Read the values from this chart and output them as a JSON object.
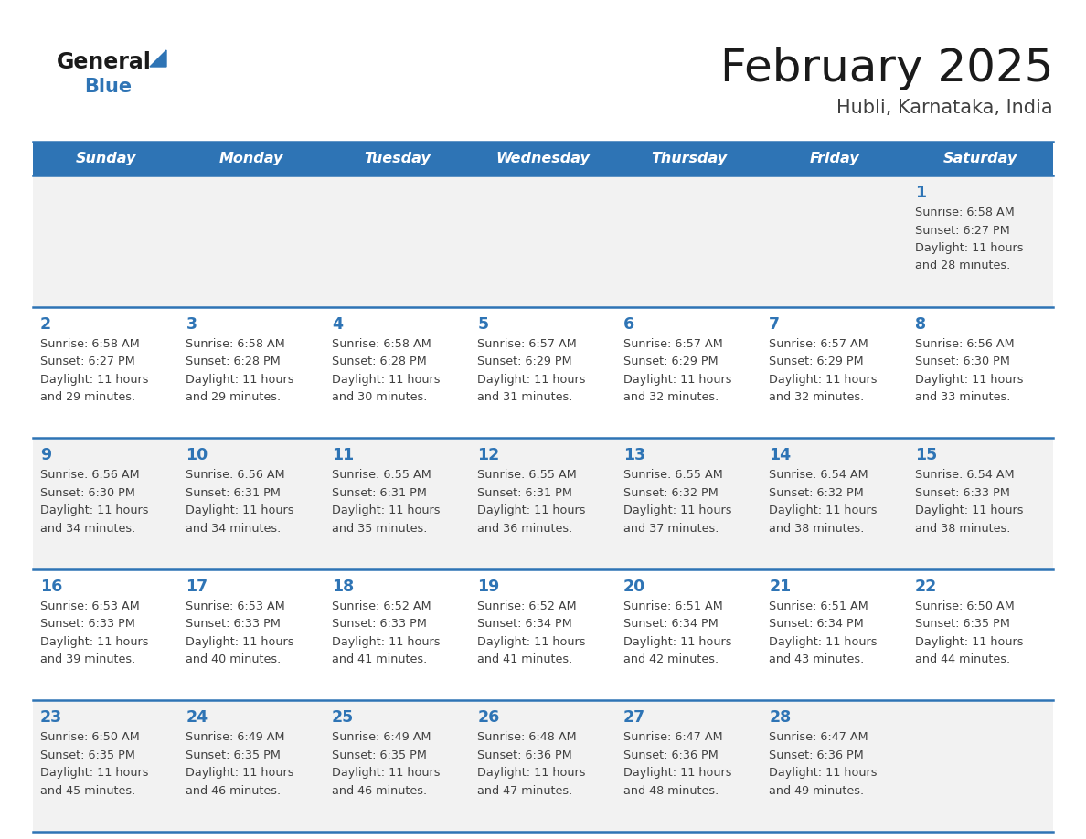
{
  "title": "February 2025",
  "subtitle": "Hubli, Karnataka, India",
  "header_bg_color": "#2e74b5",
  "header_text_color": "#ffffff",
  "day_names": [
    "Sunday",
    "Monday",
    "Tuesday",
    "Wednesday",
    "Thursday",
    "Friday",
    "Saturday"
  ],
  "cell_bg_row0": "#f2f2f2",
  "cell_bg_row1": "#ffffff",
  "cell_bg_row2": "#f2f2f2",
  "cell_bg_row3": "#ffffff",
  "cell_bg_row4": "#f2f2f2",
  "row_line_color": "#2e74b5",
  "date_text_color": "#2e74b5",
  "info_text_color": "#404040",
  "calendar_data": [
    [
      null,
      null,
      null,
      null,
      null,
      null,
      1
    ],
    [
      2,
      3,
      4,
      5,
      6,
      7,
      8
    ],
    [
      9,
      10,
      11,
      12,
      13,
      14,
      15
    ],
    [
      16,
      17,
      18,
      19,
      20,
      21,
      22
    ],
    [
      23,
      24,
      25,
      26,
      27,
      28,
      null
    ]
  ],
  "sunrise": {
    "1": "6:58 AM",
    "2": "6:58 AM",
    "3": "6:58 AM",
    "4": "6:58 AM",
    "5": "6:57 AM",
    "6": "6:57 AM",
    "7": "6:57 AM",
    "8": "6:56 AM",
    "9": "6:56 AM",
    "10": "6:56 AM",
    "11": "6:55 AM",
    "12": "6:55 AM",
    "13": "6:55 AM",
    "14": "6:54 AM",
    "15": "6:54 AM",
    "16": "6:53 AM",
    "17": "6:53 AM",
    "18": "6:52 AM",
    "19": "6:52 AM",
    "20": "6:51 AM",
    "21": "6:51 AM",
    "22": "6:50 AM",
    "23": "6:50 AM",
    "24": "6:49 AM",
    "25": "6:49 AM",
    "26": "6:48 AM",
    "27": "6:47 AM",
    "28": "6:47 AM"
  },
  "sunset": {
    "1": "6:27 PM",
    "2": "6:27 PM",
    "3": "6:28 PM",
    "4": "6:28 PM",
    "5": "6:29 PM",
    "6": "6:29 PM",
    "7": "6:29 PM",
    "8": "6:30 PM",
    "9": "6:30 PM",
    "10": "6:31 PM",
    "11": "6:31 PM",
    "12": "6:31 PM",
    "13": "6:32 PM",
    "14": "6:32 PM",
    "15": "6:33 PM",
    "16": "6:33 PM",
    "17": "6:33 PM",
    "18": "6:33 PM",
    "19": "6:34 PM",
    "20": "6:34 PM",
    "21": "6:34 PM",
    "22": "6:35 PM",
    "23": "6:35 PM",
    "24": "6:35 PM",
    "25": "6:35 PM",
    "26": "6:36 PM",
    "27": "6:36 PM",
    "28": "6:36 PM"
  },
  "daylight_hours": {
    "1": 11,
    "2": 11,
    "3": 11,
    "4": 11,
    "5": 11,
    "6": 11,
    "7": 11,
    "8": 11,
    "9": 11,
    "10": 11,
    "11": 11,
    "12": 11,
    "13": 11,
    "14": 11,
    "15": 11,
    "16": 11,
    "17": 11,
    "18": 11,
    "19": 11,
    "20": 11,
    "21": 11,
    "22": 11,
    "23": 11,
    "24": 11,
    "25": 11,
    "26": 11,
    "27": 11,
    "28": 11
  },
  "daylight_minutes": {
    "1": 28,
    "2": 29,
    "3": 29,
    "4": 30,
    "5": 31,
    "6": 32,
    "7": 32,
    "8": 33,
    "9": 34,
    "10": 34,
    "11": 35,
    "12": 36,
    "13": 37,
    "14": 38,
    "15": 38,
    "16": 39,
    "17": 40,
    "18": 41,
    "19": 41,
    "20": 42,
    "21": 43,
    "22": 44,
    "23": 45,
    "24": 46,
    "25": 46,
    "26": 47,
    "27": 48,
    "28": 49
  }
}
